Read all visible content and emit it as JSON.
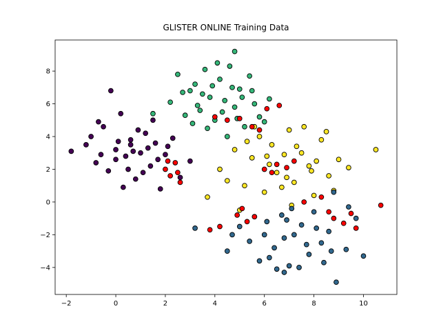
{
  "chart_data": {
    "type": "scatter",
    "title": "GLISTER ONLINE Training Data",
    "xlim": [
      -2.45,
      11.35
    ],
    "ylim": [
      -5.65,
      9.9
    ],
    "xticks": [
      {
        "value": -2,
        "label": "−2"
      },
      0,
      2,
      4,
      6,
      8,
      10
    ],
    "yticks": [
      {
        "value": -4,
        "label": "−4"
      },
      {
        "value": -2,
        "label": "−2"
      },
      0,
      2,
      4,
      6,
      8
    ],
    "grid": false,
    "series": [
      {
        "color": "#440154",
        "x": [
          -1.8,
          -1.2,
          -0.8,
          -0.5,
          -0.3,
          0,
          0.2,
          0.4,
          0.6,
          0.8,
          1,
          1.2,
          1.4,
          1.6,
          1.8,
          2,
          2.3,
          2.6,
          3,
          -0.6,
          0.1,
          0.5,
          0.9,
          1.3,
          1.7,
          -1,
          0.3,
          0.7,
          1.1,
          -0.2,
          1.5,
          2.1,
          0.0,
          0.6,
          -0.7
        ],
        "y": [
          3.1,
          3.5,
          2.4,
          4.6,
          1.9,
          3.2,
          5.4,
          2.8,
          3.8,
          1.4,
          3.0,
          4.2,
          2.2,
          3.6,
          0.8,
          2.9,
          3.9,
          1.5,
          2.5,
          2.9,
          3.7,
          2.0,
          4.4,
          3.3,
          2.6,
          4.0,
          0.9,
          3.1,
          1.8,
          6.8,
          5.0,
          3.4,
          2.6,
          3.5,
          4.9
        ]
      },
      {
        "color": "#35b779",
        "x": [
          2.2,
          2.5,
          2.8,
          3.0,
          3.2,
          3.4,
          3.6,
          3.8,
          4.0,
          4.2,
          4.4,
          4.6,
          4.8,
          5.0,
          5.2,
          5.4,
          5.6,
          5.8,
          6.2,
          3.1,
          3.5,
          3.9,
          4.3,
          4.7,
          5.1,
          2.7,
          3.3,
          4.1,
          4.9,
          5.5,
          4.8,
          3.7,
          4.5,
          1.5,
          6.0
        ],
        "y": [
          6.1,
          7.8,
          5.3,
          6.8,
          7.2,
          5.6,
          8.1,
          6.4,
          5.0,
          7.5,
          6.2,
          8.3,
          5.8,
          6.9,
          4.6,
          7.7,
          6.0,
          5.2,
          6.3,
          4.8,
          6.6,
          7.1,
          5.5,
          7.0,
          6.4,
          6.7,
          5.9,
          8.5,
          5.1,
          6.8,
          9.2,
          4.5,
          4.0,
          5.4,
          4.9
        ]
      },
      {
        "color": "#fde725",
        "x": [
          4.2,
          4.8,
          5.2,
          5.5,
          5.8,
          6.0,
          6.3,
          6.5,
          6.8,
          7.0,
          7.2,
          7.5,
          7.8,
          8.0,
          8.3,
          8.6,
          9.0,
          9.4,
          10.5,
          5.0,
          5.6,
          6.2,
          6.7,
          7.3,
          7.9,
          8.5,
          6.1,
          7.1,
          8.1,
          4.5,
          5.3,
          6.9,
          7.6,
          8.8,
          3.7
        ],
        "y": [
          2.0,
          3.2,
          1.0,
          2.7,
          4.0,
          0.6,
          3.5,
          1.8,
          2.9,
          4.4,
          1.2,
          3.0,
          2.2,
          0.4,
          3.8,
          1.6,
          2.6,
          2.1,
          3.2,
          -0.5,
          4.6,
          2.3,
          0.9,
          3.4,
          1.9,
          4.3,
          2.8,
          -0.2,
          2.5,
          1.3,
          3.7,
          1.5,
          4.6,
          0.7,
          0.3
        ]
      },
      {
        "color": "#31688e",
        "x": [
          3.2,
          4.5,
          5.0,
          5.4,
          5.8,
          6.1,
          6.4,
          6.7,
          7.0,
          7.2,
          7.5,
          7.8,
          8.0,
          8.3,
          8.6,
          8.9,
          9.3,
          9.7,
          10.0,
          5.6,
          6.2,
          6.8,
          7.4,
          8.1,
          8.7,
          6.0,
          6.9,
          7.7,
          8.4,
          4.7,
          6.5,
          7.1,
          8.8,
          9.4,
          6.8
        ],
        "y": [
          -1.6,
          -3.0,
          -1.5,
          -2.4,
          -3.6,
          -1.2,
          -2.8,
          -0.8,
          -3.9,
          -2.0,
          -1.4,
          -3.2,
          -0.6,
          -2.5,
          -1.8,
          -4.9,
          -2.9,
          -1.0,
          -3.3,
          -0.9,
          -3.4,
          -2.2,
          -4.0,
          -1.6,
          -3.0,
          -2.0,
          -1.1,
          -2.6,
          -3.7,
          -2.0,
          -4.1,
          -0.4,
          0.6,
          -0.3,
          -4.3
        ]
      },
      {
        "color": "#ff0000",
        "x": [
          2.0,
          2.2,
          2.4,
          2.6,
          2.1,
          2.5,
          4.0,
          4.5,
          5.0,
          5.5,
          5.8,
          6.0,
          6.5,
          6.9,
          7.2,
          6.3,
          4.9,
          5.3,
          5.6,
          5.1,
          4.2,
          8.8,
          9.2,
          9.5,
          8.6,
          10.7,
          7.6,
          8.3,
          6.1,
          6.6,
          9.7,
          3.8
        ],
        "y": [
          2.0,
          1.6,
          2.4,
          1.2,
          2.5,
          1.8,
          5.2,
          5.0,
          5.1,
          4.6,
          4.4,
          2.0,
          2.3,
          2.1,
          2.5,
          1.8,
          -0.8,
          -1.2,
          -0.9,
          -0.4,
          -1.5,
          -1.0,
          -1.3,
          -0.7,
          -0.6,
          -0.2,
          0.0,
          0.3,
          5.7,
          5.9,
          -1.6,
          -1.7
        ]
      }
    ]
  }
}
